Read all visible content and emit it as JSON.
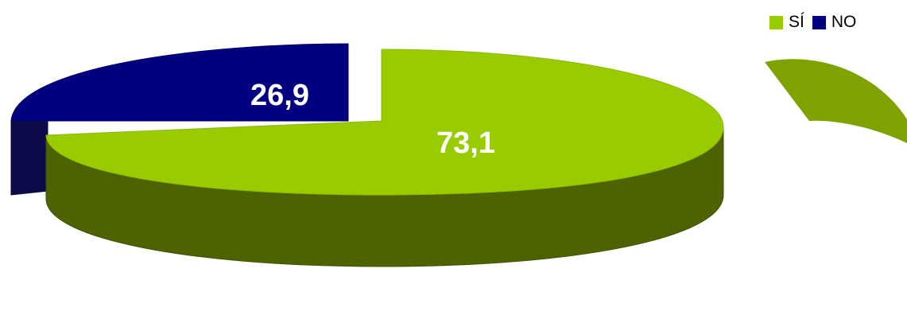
{
  "chart_data": {
    "type": "pie",
    "style": "3d-exploded",
    "categories": [
      "SÍ",
      "NO"
    ],
    "values": [
      73.1,
      26.9
    ],
    "data_labels": [
      "73,1",
      "26,9"
    ],
    "colors": [
      "#99cc00",
      "#000080"
    ],
    "legend": {
      "position": "top-right",
      "items": [
        {
          "label": "SÍ",
          "color": "#99cc00"
        },
        {
          "label": "NO",
          "color": "#000080"
        }
      ]
    }
  }
}
